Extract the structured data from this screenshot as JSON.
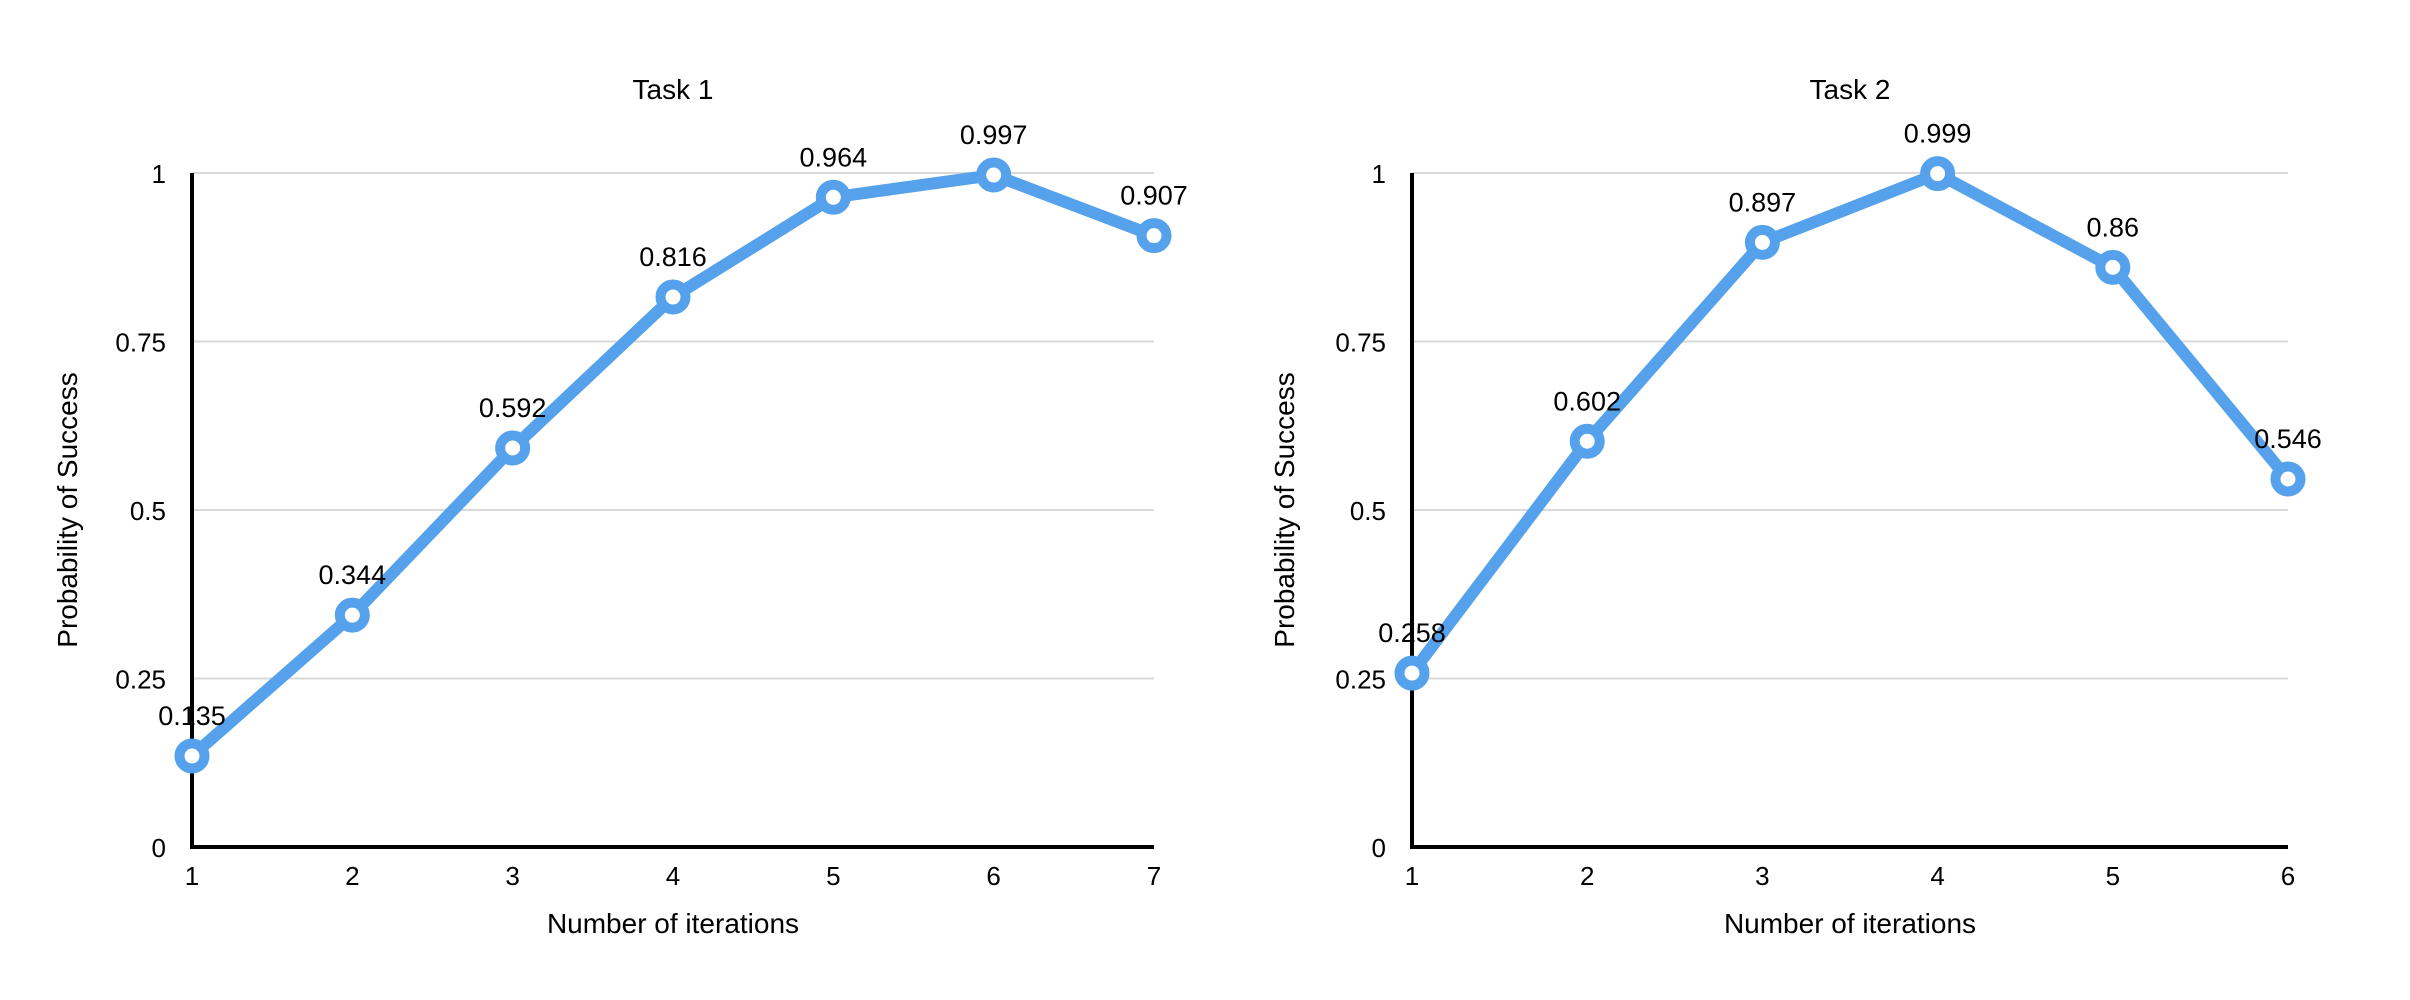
{
  "colors": {
    "series_line": "#55A1EC",
    "marker_fill": "#FFFFFF",
    "gridline": "#D9D9D9",
    "axis": "#000000",
    "text": "#000000",
    "background": "#FFFFFF"
  },
  "chart_data": [
    {
      "type": "line",
      "title": "Task 1",
      "xlabel": "Number of iterations",
      "ylabel": "Probability of Success",
      "categories": [
        "1",
        "2",
        "3",
        "4",
        "5",
        "6",
        "7"
      ],
      "values": [
        0.135,
        0.344,
        0.592,
        0.816,
        0.964,
        0.997,
        0.907
      ],
      "point_labels": [
        "0.135",
        "0.344",
        "0.592",
        "0.816",
        "0.964",
        "0.997",
        "0.907"
      ],
      "ylim": [
        0,
        1
      ],
      "yticks": [
        "0",
        "0.25",
        "0.5",
        "0.75",
        "1"
      ],
      "grid": true,
      "legend": "none",
      "marker": "open-circle",
      "line_color": "#55A1EC"
    },
    {
      "type": "line",
      "title": "Task 2",
      "xlabel": "Number of iterations",
      "ylabel": "Probability of Success",
      "categories": [
        "1",
        "2",
        "3",
        "4",
        "5",
        "6"
      ],
      "values": [
        0.258,
        0.602,
        0.897,
        0.999,
        0.86,
        0.546
      ],
      "point_labels": [
        "0.258",
        "0.602",
        "0.897",
        "0.999",
        "0.86",
        "0.546"
      ],
      "ylim": [
        0,
        1
      ],
      "yticks": [
        "0",
        "0.25",
        "0.5",
        "0.75",
        "1"
      ],
      "grid": true,
      "legend": "none",
      "marker": "open-circle",
      "line_color": "#55A1EC"
    }
  ]
}
